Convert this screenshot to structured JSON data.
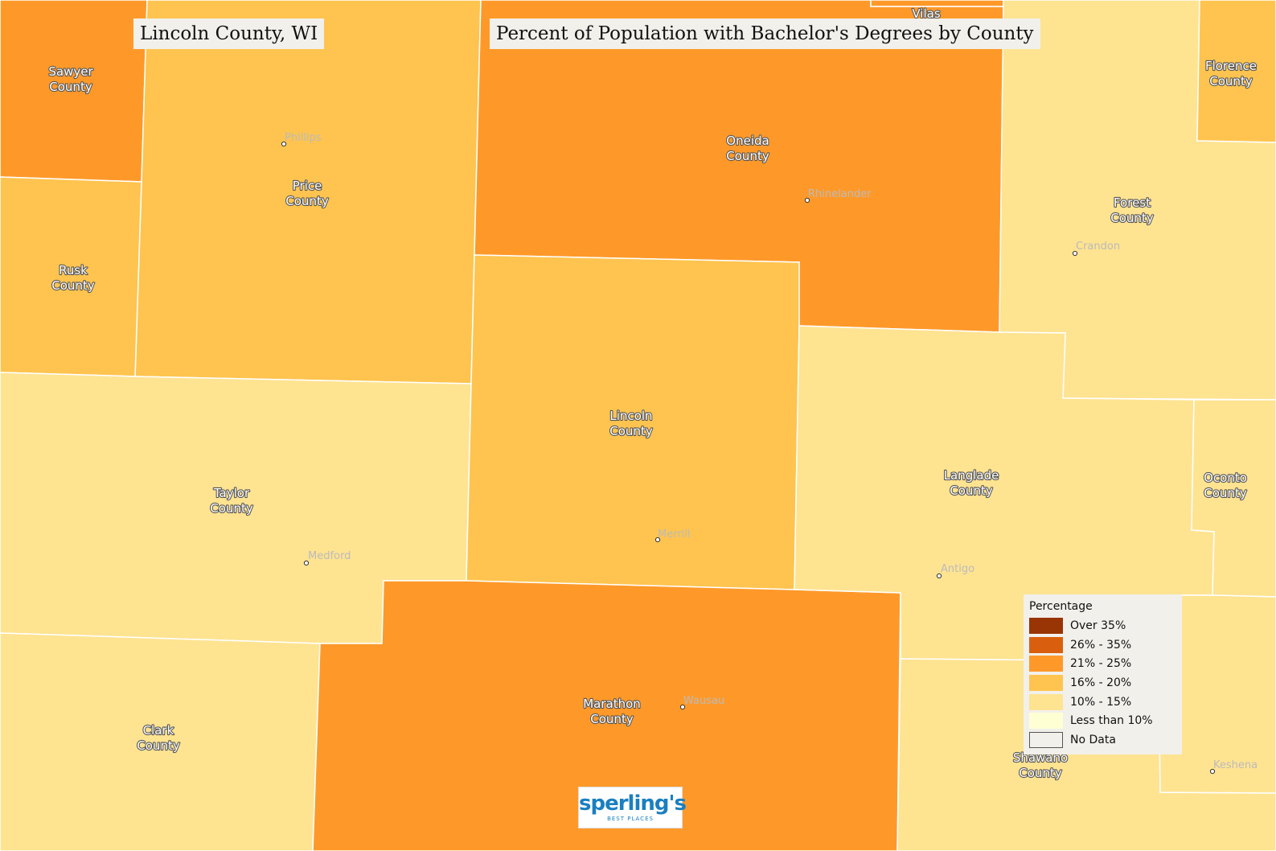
{
  "header": {
    "title_left": "Lincoln County, WI",
    "title_right": "Percent of Population with Bachelor's Degrees by County"
  },
  "colors": {
    "over_35": "#993404",
    "c26_35": "#d95f0e",
    "c21_25": "#fe9929",
    "c16_20": "#fec44f",
    "c10_15": "#fee391",
    "under_10": "#ffffd4",
    "no_data": "#f2f0eb",
    "border": "#ffffff"
  },
  "counties": [
    {
      "id": "sawyer",
      "line1": "Sawyer",
      "line2": "County",
      "category": "21% - 25%"
    },
    {
      "id": "price",
      "line1": "Price",
      "line2": "County",
      "category": "16% - 20%"
    },
    {
      "id": "rusk",
      "line1": "Rusk",
      "line2": "County",
      "category": "16% - 20%"
    },
    {
      "id": "taylor",
      "line1": "Taylor",
      "line2": "County",
      "category": "10% - 15%"
    },
    {
      "id": "clark",
      "line1": "Clark",
      "line2": "County",
      "category": "10% - 15%"
    },
    {
      "id": "oneida",
      "line1": "Oneida",
      "line2": "County",
      "category": "21% - 25%"
    },
    {
      "id": "vilas",
      "line1": "Vilas",
      "line2": "",
      "category": "21% - 25%"
    },
    {
      "id": "lincoln",
      "line1": "Lincoln",
      "line2": "County",
      "category": "16% - 20%"
    },
    {
      "id": "marathon",
      "line1": "Marathon",
      "line2": "County",
      "category": "21% - 25%"
    },
    {
      "id": "forest",
      "line1": "Forest",
      "line2": "County",
      "category": "10% - 15%"
    },
    {
      "id": "florence",
      "line1": "Florence",
      "line2": "County",
      "category": "16% - 20%"
    },
    {
      "id": "langlade",
      "line1": "Langlade",
      "line2": "County",
      "category": "10% - 15%"
    },
    {
      "id": "oconto",
      "line1": "Oconto",
      "line2": "County",
      "category": "10% - 15%"
    },
    {
      "id": "shawano",
      "line1": "Shawano",
      "line2": "County",
      "category": "10% - 15%"
    },
    {
      "id": "menominee",
      "line1": "",
      "line2": "",
      "category": "10% - 15%"
    }
  ],
  "cities": [
    {
      "id": "phillips",
      "name": "Phillips"
    },
    {
      "id": "rhinelander",
      "name": "Rhinelander"
    },
    {
      "id": "crandon",
      "name": "Crandon"
    },
    {
      "id": "merrill",
      "name": "Merrill"
    },
    {
      "id": "medford",
      "name": "Medford"
    },
    {
      "id": "antigo",
      "name": "Antigo"
    },
    {
      "id": "wausau",
      "name": "Wausau"
    },
    {
      "id": "keshena",
      "name": "Keshena"
    }
  ],
  "legend": {
    "title": "Percentage",
    "items": [
      {
        "label": "Over 35%",
        "color": "#993404"
      },
      {
        "label": "26% - 35%",
        "color": "#d95f0e"
      },
      {
        "label": "21% - 25%",
        "color": "#fe9929"
      },
      {
        "label": "16% - 20%",
        "color": "#fec44f"
      },
      {
        "label": "10% - 15%",
        "color": "#fee391"
      },
      {
        "label": "Less than 10%",
        "color": "#ffffd4"
      },
      {
        "label": "No Data",
        "color": "#f2f0eb"
      }
    ]
  },
  "logo": {
    "main": "sperling's",
    "sub": "BEST PLACES"
  }
}
